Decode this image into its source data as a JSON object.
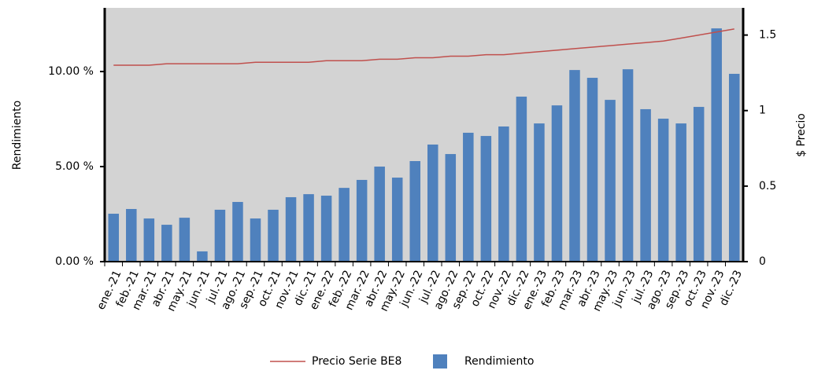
{
  "chart_data": {
    "type": "bar",
    "y_label": "Rendimiento",
    "y2_label": "$ Precio",
    "categories": [
      "ene.-21",
      "feb.-21",
      "mar.-21",
      "abr.-21",
      "may.-21",
      "jun.-21",
      "jul.-21",
      "ago.-21",
      "sep.-21",
      "oct.-21",
      "nov.-21",
      "dic.-21",
      "ene.-22",
      "feb.-22",
      "mar.-22",
      "abr.-22",
      "may.-22",
      "jun.-22",
      "jul.-22",
      "ago.-22",
      "sep.-22",
      "oct.-22",
      "nov.-22",
      "dic.-22",
      "ene.-23",
      "feb.-23",
      "mar.-23",
      "abr.-23",
      "may.-23",
      "jun.-23",
      "jul.-23",
      "ago.-23",
      "sep.-23",
      "oct.-23",
      "nov.-23",
      "dic.-23"
    ],
    "series": [
      {
        "name": "Precio Serie BE8",
        "type": "line",
        "axis": "y2",
        "color": "#c0504d",
        "values": [
          1.3,
          1.3,
          1.3,
          1.31,
          1.31,
          1.31,
          1.31,
          1.31,
          1.32,
          1.32,
          1.32,
          1.32,
          1.33,
          1.33,
          1.33,
          1.34,
          1.34,
          1.35,
          1.35,
          1.36,
          1.36,
          1.37,
          1.37,
          1.38,
          1.39,
          1.4,
          1.41,
          1.42,
          1.43,
          1.44,
          1.45,
          1.46,
          1.48,
          1.5,
          1.52,
          1.54
        ]
      },
      {
        "name": "Rendimiento",
        "type": "bar",
        "color": "#4f81bd",
        "values": [
          2.52,
          2.77,
          2.27,
          1.94,
          2.31,
          0.54,
          2.73,
          3.14,
          2.27,
          2.73,
          3.39,
          3.55,
          3.47,
          3.88,
          4.3,
          5.0,
          4.42,
          5.29,
          6.16,
          5.66,
          6.78,
          6.61,
          7.11,
          8.68,
          7.27,
          8.22,
          10.08,
          9.67,
          8.51,
          10.12,
          8.02,
          7.52,
          7.27,
          8.14,
          12.27,
          9.88
        ]
      }
    ],
    "ylim": [
      0,
      13.35
    ],
    "yticks": [
      {
        "value": 0,
        "label": "0.00 %"
      },
      {
        "value": 5,
        "label": "5.00 %"
      },
      {
        "value": 10,
        "label": "10.00 %"
      }
    ],
    "y2lim": [
      0,
      1.68
    ],
    "y2ticks": [
      0,
      0.5,
      1,
      1.5
    ],
    "background": "#d3d3d3"
  }
}
